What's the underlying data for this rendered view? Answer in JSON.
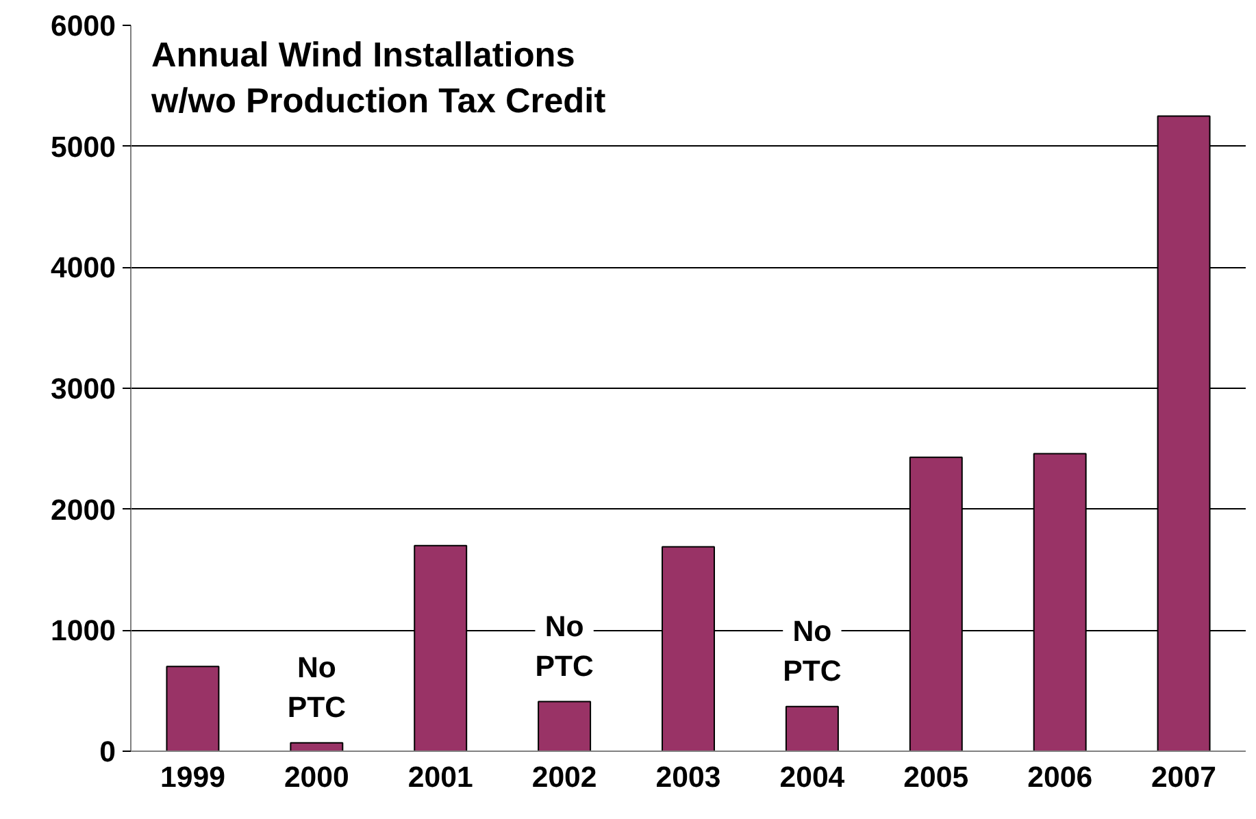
{
  "chart_data": {
    "type": "bar",
    "title": "Annual Wind Installations\nw/wo Production Tax Credit",
    "categories": [
      "1999",
      "2000",
      "2001",
      "2002",
      "2003",
      "2004",
      "2005",
      "2006",
      "2007"
    ],
    "values": [
      700,
      70,
      1700,
      410,
      1690,
      370,
      2430,
      2460,
      5250
    ],
    "color": "#993366",
    "ylim": [
      0,
      6000
    ],
    "yticks": [
      0,
      1000,
      2000,
      3000,
      4000,
      5000,
      6000
    ],
    "grid": "y",
    "annotations": [
      {
        "text": "No\nPTC",
        "x": "2000",
        "y": 70
      },
      {
        "text": "No\nPTC",
        "x": "2002",
        "y": 410
      },
      {
        "text": "No\nPTC",
        "x": "2004",
        "y": 370
      }
    ]
  }
}
